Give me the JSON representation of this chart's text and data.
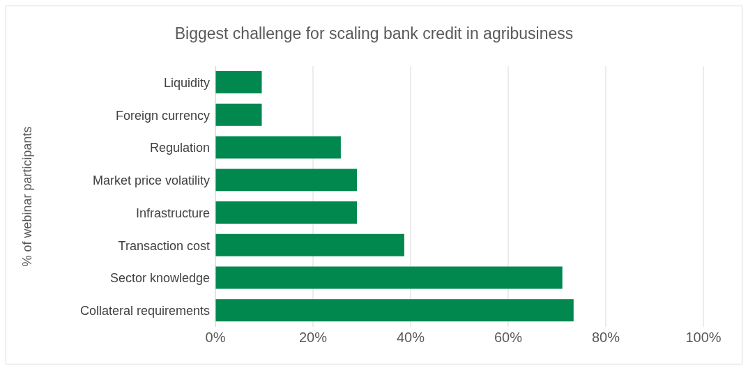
{
  "chart_data": {
    "type": "bar",
    "orientation": "horizontal",
    "title": "Biggest challenge for scaling bank credit in agribusiness",
    "ylabel": "% of webinar participants",
    "categories": [
      "Liquidity",
      "Foreign currency",
      "Regulation",
      "Market price volatility",
      "Infrastructure",
      "Transaction cost",
      "Sector knowledge",
      "Collateral requirements"
    ],
    "values": [
      0.095,
      0.095,
      0.257,
      0.29,
      0.29,
      0.387,
      0.711,
      0.734
    ],
    "color": "#00884f",
    "xlim": [
      0,
      1
    ],
    "xticks": [
      {
        "value": 0,
        "label": "0%"
      },
      {
        "value": 0.2,
        "label": "20%"
      },
      {
        "value": 0.4,
        "label": "40%"
      },
      {
        "value": 0.6,
        "label": "60%"
      },
      {
        "value": 0.8,
        "label": "80%"
      },
      {
        "value": 1,
        "label": "100%"
      }
    ],
    "grid": "x"
  }
}
